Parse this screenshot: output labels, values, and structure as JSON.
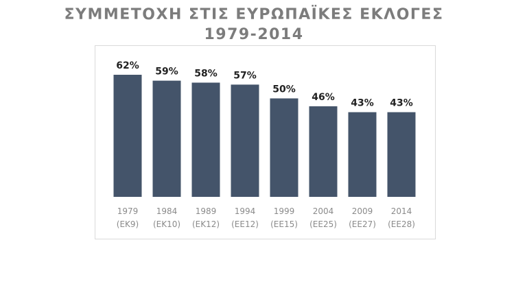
{
  "title": {
    "line1": "ΣΥΜΜΕΤΟΧΗ ΣΤΙΣ ΕΥΡΩΠΑΪΚΕΣ ΕΚΛΟΓΕΣ",
    "line2": "1979-2014"
  },
  "chart_data": {
    "type": "bar",
    "title": "ΣΥΜΜΕΤΟΧΗ ΣΤΙΣ ΕΥΡΩΠΑΪΚΕΣ ΕΚΛΟΓΕΣ 1979-2014",
    "categories": [
      "1979",
      "1984",
      "1989",
      "1994",
      "1999",
      "2004",
      "2009",
      "2014"
    ],
    "category_sublabels": [
      "(ΕΚ9)",
      "(ΕΚ10)",
      "(ΕΚ12)",
      "(ΕΕ12)",
      "(ΕΕ15)",
      "(ΕΕ25)",
      "(ΕΕ27)",
      "(ΕΕ28)"
    ],
    "values": [
      62,
      59,
      58,
      57,
      50,
      46,
      43,
      43
    ],
    "value_labels": [
      "62%",
      "59%",
      "58%",
      "57%",
      "50%",
      "46%",
      "43%",
      "43%"
    ],
    "value_suffix": "%",
    "ylim": [
      0,
      100
    ],
    "bar_color": "#44546a",
    "grid": false,
    "legend": "none",
    "xlabel": "",
    "ylabel": ""
  }
}
